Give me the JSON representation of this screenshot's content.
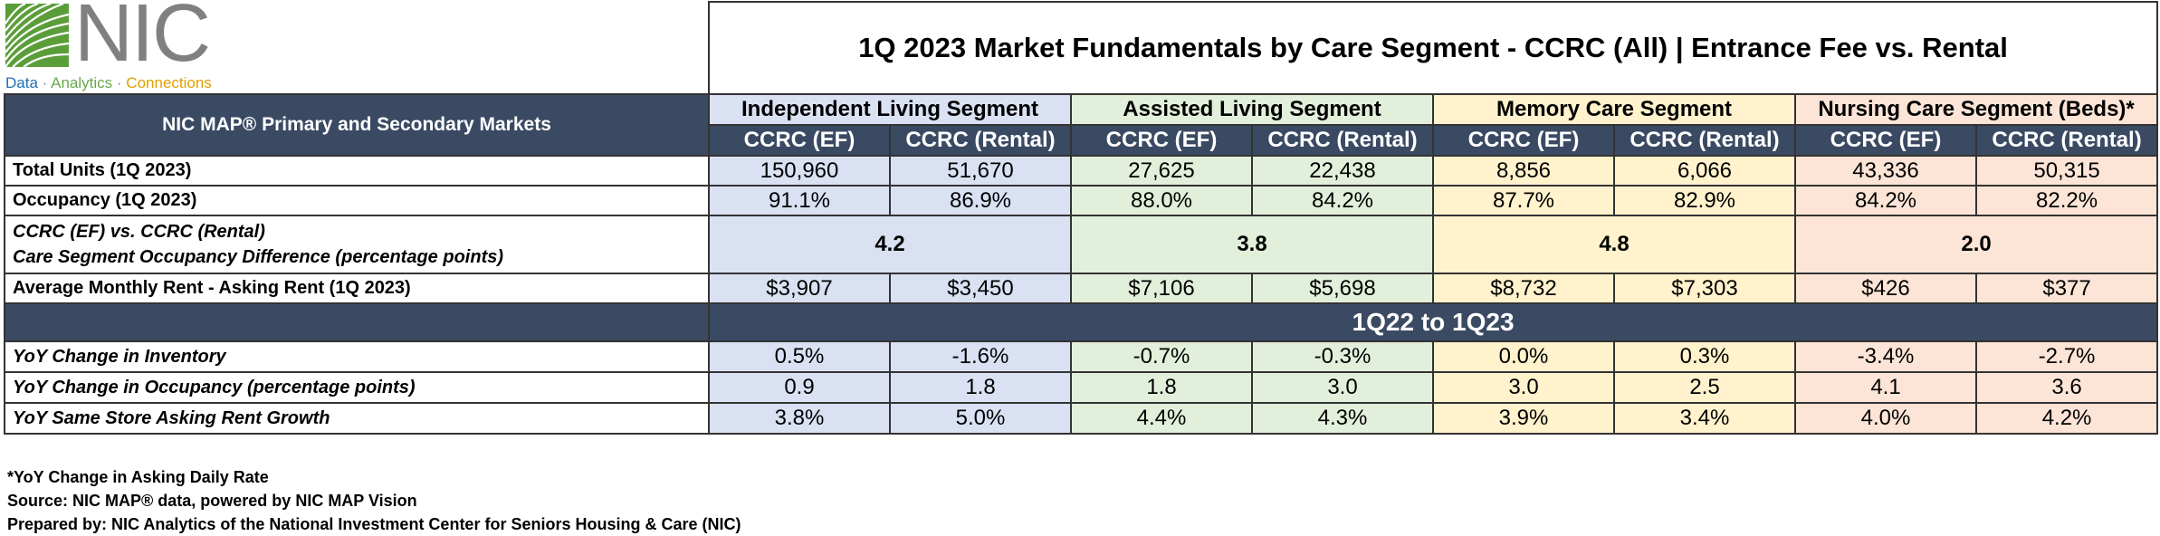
{
  "logo": {
    "name": "NIC",
    "tagline_data": "Data",
    "tagline_analytics": "Analytics",
    "tagline_connections": "Connections",
    "separator": "·"
  },
  "title": "1Q 2023 Market Fundamentals by Care Segment - CCRC (All) | Entrance Fee vs. Rental",
  "markets_label": "NIC MAP® Primary and Secondary Markets",
  "segments": [
    {
      "name": "Independent Living Segment",
      "color": "#d9e1f2"
    },
    {
      "name": "Assisted Living Segment",
      "color": "#e2efda"
    },
    {
      "name": "Memory Care Segment",
      "color": "#fff2cc"
    },
    {
      "name": "Nursing Care Segment (Beds)*",
      "color": "#fce4d6"
    }
  ],
  "sub_headers": [
    "CCRC (EF)",
    "CCRC (Rental)",
    "CCRC (EF)",
    "CCRC (Rental)",
    "CCRC (EF)",
    "CCRC (Rental)",
    "CCRC (EF)",
    "CCRC (Rental)"
  ],
  "rows": {
    "total_units": {
      "label": "Total Units (1Q 2023)",
      "values": [
        "150,960",
        "51,670",
        "27,625",
        "22,438",
        "8,856",
        "6,066",
        "43,336",
        "50,315"
      ]
    },
    "occupancy": {
      "label": "Occupancy (1Q 2023)",
      "values": [
        "91.1%",
        "86.9%",
        "88.0%",
        "84.2%",
        "87.7%",
        "82.9%",
        "84.2%",
        "82.2%"
      ]
    },
    "occ_diff": {
      "label_line1": "CCRC (EF) vs. CCRC (Rental)",
      "label_line2": "Care Segment Occupancy Difference (percentage points)",
      "values": [
        "4.2",
        "3.8",
        "4.8",
        "2.0"
      ]
    },
    "rent": {
      "label": "Average Monthly Rent - Asking Rent (1Q 2023)",
      "values": [
        "$3,907",
        "$3,450",
        "$7,106",
        "$5,698",
        "$8,732",
        "$7,303",
        "$426",
        "$377"
      ]
    }
  },
  "period_label": "1Q22 to 1Q23",
  "yoy_rows": {
    "inventory": {
      "label": "YoY Change in Inventory",
      "values": [
        "0.5%",
        "-1.6%",
        "-0.7%",
        "-0.3%",
        "0.0%",
        "0.3%",
        "-3.4%",
        "-2.7%"
      ]
    },
    "occupancy": {
      "label": "YoY Change in Occupancy (percentage points)",
      "values": [
        "0.9",
        "1.8",
        "1.8",
        "3.0",
        "3.0",
        "2.5",
        "4.1",
        "3.6"
      ]
    },
    "rent_growth": {
      "label": "YoY Same Store Asking Rent Growth",
      "values": [
        "3.8%",
        "5.0%",
        "4.4%",
        "4.3%",
        "3.9%",
        "3.4%",
        "4.0%",
        "4.2%"
      ]
    }
  },
  "footnotes": {
    "note": "*YoY Change in Asking Daily Rate",
    "source": "Source: NIC MAP® data, powered by NIC MAP Vision",
    "prepared": "Prepared by: NIC Analytics of the National Investment Center for Seniors Housing & Care (NIC)"
  }
}
